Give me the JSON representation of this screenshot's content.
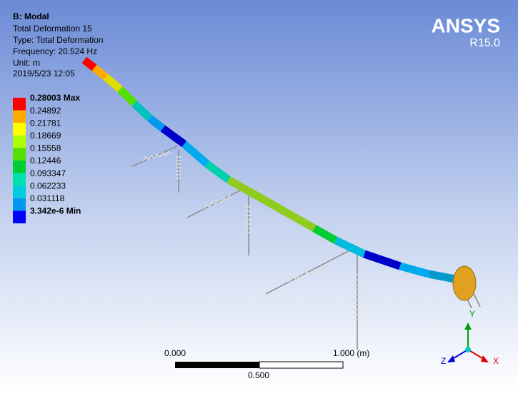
{
  "header": {
    "title": "B: Modal",
    "lines": [
      "Total Deformation 15",
      "Type: Total Deformation",
      "Frequency: 20.524 Hz",
      "Unit: m",
      "2019/5/23 12:05"
    ]
  },
  "legend": {
    "items": [
      {
        "label": "0.28003 Max",
        "color": "#ff0000"
      },
      {
        "label": "0.24892",
        "color": "#ffaa00"
      },
      {
        "label": "0.21781",
        "color": "#ffff00"
      },
      {
        "label": "0.18669",
        "color": "#aaff00"
      },
      {
        "label": "0.15558",
        "color": "#55e000"
      },
      {
        "label": "0.12446",
        "color": "#00cc33"
      },
      {
        "label": "0.093347",
        "color": "#00e0aa"
      },
      {
        "label": "0.062233",
        "color": "#00ccdd"
      },
      {
        "label": "0.031118",
        "color": "#0099ee"
      },
      {
        "label": "3.342e-6 Min",
        "color": "#0000ff"
      }
    ]
  },
  "logo": {
    "brand": "ANSYS",
    "version": "R15.0"
  },
  "scale_bar": {
    "start": "0.000",
    "end": "1.000 (m)",
    "mid": "0.500"
  },
  "triad": {
    "x": "X",
    "y": "Y",
    "z": "Z"
  }
}
